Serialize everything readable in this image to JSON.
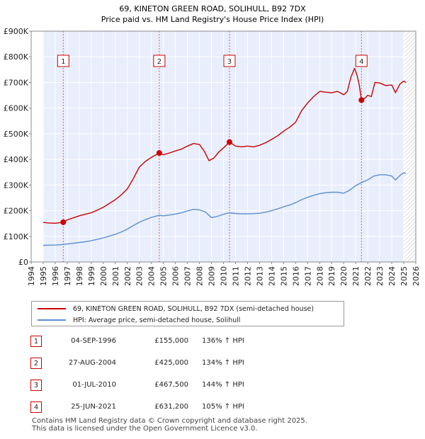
{
  "chart_data": {
    "type": "line",
    "title": "69, KINETON GREEN ROAD, SOLIHULL, B92 7DX",
    "subtitle": "Price paid vs. HM Land Registry's House Price Index (HPI)",
    "x_ticks": [
      "1994",
      "1995",
      "1996",
      "1997",
      "1998",
      "1999",
      "2000",
      "2001",
      "2002",
      "2003",
      "2004",
      "2005",
      "2006",
      "2007",
      "2008",
      "2009",
      "2010",
      "2011",
      "2012",
      "2013",
      "2014",
      "2015",
      "2016",
      "2017",
      "2018",
      "2019",
      "2020",
      "2021",
      "2022",
      "2023",
      "2024",
      "2025",
      "2026"
    ],
    "xlim": [
      1994,
      2026
    ],
    "y_ticks": [
      {
        "value": 0,
        "label": "£0"
      },
      {
        "value": 100000,
        "label": "£100K"
      },
      {
        "value": 200000,
        "label": "£200K"
      },
      {
        "value": 300000,
        "label": "£300K"
      },
      {
        "value": 400000,
        "label": "£400K"
      },
      {
        "value": 500000,
        "label": "£500K"
      },
      {
        "value": 600000,
        "label": "£600K"
      },
      {
        "value": 700000,
        "label": "£700K"
      },
      {
        "value": 800000,
        "label": "£800K"
      },
      {
        "value": 900000,
        "label": "£900K"
      }
    ],
    "ylim": [
      0,
      900000
    ],
    "data_start": 1995,
    "forecast_start": 2025.0,
    "series": [
      {
        "name": "69, KINETON GREEN ROAD, SOLIHULL, B92 7DX (semi-detached house)",
        "color": "#cc0000",
        "points": [
          [
            1995.0,
            154000
          ],
          [
            1995.5,
            152000
          ],
          [
            1996.0,
            151000
          ],
          [
            1996.67,
            155000
          ],
          [
            1997.0,
            164000
          ],
          [
            1997.5,
            172000
          ],
          [
            1998.0,
            180000
          ],
          [
            1998.5,
            186000
          ],
          [
            1999.0,
            192000
          ],
          [
            1999.5,
            202000
          ],
          [
            2000.0,
            213000
          ],
          [
            2000.5,
            228000
          ],
          [
            2001.0,
            243000
          ],
          [
            2001.5,
            262000
          ],
          [
            2002.0,
            285000
          ],
          [
            2002.5,
            325000
          ],
          [
            2003.0,
            370000
          ],
          [
            2003.5,
            392000
          ],
          [
            2004.0,
            408000
          ],
          [
            2004.66,
            425000
          ],
          [
            2005.0,
            418000
          ],
          [
            2005.5,
            425000
          ],
          [
            2006.0,
            433000
          ],
          [
            2006.5,
            440000
          ],
          [
            2007.0,
            452000
          ],
          [
            2007.5,
            462000
          ],
          [
            2008.0,
            458000
          ],
          [
            2008.4,
            432000
          ],
          [
            2008.8,
            395000
          ],
          [
            2009.2,
            405000
          ],
          [
            2009.6,
            428000
          ],
          [
            2010.0,
            445000
          ],
          [
            2010.5,
            467500
          ],
          [
            2011.0,
            452000
          ],
          [
            2011.5,
            449000
          ],
          [
            2012.0,
            452000
          ],
          [
            2012.5,
            449000
          ],
          [
            2013.0,
            455000
          ],
          [
            2013.5,
            465000
          ],
          [
            2014.0,
            478000
          ],
          [
            2014.5,
            492000
          ],
          [
            2015.0,
            510000
          ],
          [
            2015.5,
            525000
          ],
          [
            2016.0,
            545000
          ],
          [
            2016.5,
            590000
          ],
          [
            2017.0,
            620000
          ],
          [
            2017.5,
            645000
          ],
          [
            2018.0,
            665000
          ],
          [
            2018.5,
            662000
          ],
          [
            2019.0,
            660000
          ],
          [
            2019.5,
            665000
          ],
          [
            2020.0,
            652000
          ],
          [
            2020.3,
            665000
          ],
          [
            2020.6,
            720000
          ],
          [
            2020.9,
            755000
          ],
          [
            2021.1,
            730000
          ],
          [
            2021.3,
            690000
          ],
          [
            2021.48,
            631200
          ],
          [
            2021.8,
            640000
          ],
          [
            2022.0,
            650000
          ],
          [
            2022.3,
            645000
          ],
          [
            2022.6,
            700000
          ],
          [
            2023.0,
            698000
          ],
          [
            2023.5,
            688000
          ],
          [
            2024.0,
            690000
          ],
          [
            2024.3,
            660000
          ],
          [
            2024.7,
            695000
          ],
          [
            2025.0,
            705000
          ],
          [
            2025.2,
            700000
          ]
        ]
      },
      {
        "name": "HPI: Average price, semi-detached house, Solihull",
        "color": "#5b8fd1",
        "points": [
          [
            1995.0,
            65000
          ],
          [
            1995.5,
            65500
          ],
          [
            1996.0,
            66000
          ],
          [
            1996.5,
            67500
          ],
          [
            1997.0,
            70000
          ],
          [
            1997.5,
            73000
          ],
          [
            1998.0,
            76000
          ],
          [
            1998.5,
            79000
          ],
          [
            1999.0,
            83000
          ],
          [
            1999.5,
            88000
          ],
          [
            2000.0,
            94000
          ],
          [
            2000.5,
            101000
          ],
          [
            2001.0,
            108000
          ],
          [
            2001.5,
            117000
          ],
          [
            2002.0,
            128000
          ],
          [
            2002.5,
            142000
          ],
          [
            2003.0,
            155000
          ],
          [
            2003.5,
            165000
          ],
          [
            2004.0,
            174000
          ],
          [
            2004.66,
            182000
          ],
          [
            2005.0,
            180000
          ],
          [
            2005.5,
            183000
          ],
          [
            2006.0,
            187000
          ],
          [
            2006.5,
            192000
          ],
          [
            2007.0,
            199000
          ],
          [
            2007.5,
            205000
          ],
          [
            2008.0,
            203000
          ],
          [
            2008.5,
            195000
          ],
          [
            2009.0,
            173000
          ],
          [
            2009.5,
            178000
          ],
          [
            2010.0,
            186000
          ],
          [
            2010.5,
            192000
          ],
          [
            2011.0,
            189000
          ],
          [
            2011.5,
            188000
          ],
          [
            2012.0,
            188000
          ],
          [
            2012.5,
            188500
          ],
          [
            2013.0,
            190000
          ],
          [
            2013.5,
            194000
          ],
          [
            2014.0,
            200000
          ],
          [
            2014.5,
            207000
          ],
          [
            2015.0,
            215000
          ],
          [
            2015.5,
            222000
          ],
          [
            2016.0,
            231000
          ],
          [
            2016.5,
            243000
          ],
          [
            2017.0,
            252000
          ],
          [
            2017.5,
            260000
          ],
          [
            2018.0,
            266000
          ],
          [
            2018.5,
            270000
          ],
          [
            2019.0,
            272000
          ],
          [
            2019.5,
            272000
          ],
          [
            2020.0,
            268000
          ],
          [
            2020.5,
            280000
          ],
          [
            2021.0,
            298000
          ],
          [
            2021.5,
            310000
          ],
          [
            2022.0,
            320000
          ],
          [
            2022.5,
            335000
          ],
          [
            2023.0,
            340000
          ],
          [
            2023.5,
            340000
          ],
          [
            2024.0,
            335000
          ],
          [
            2024.3,
            320000
          ],
          [
            2024.7,
            338000
          ],
          [
            2025.0,
            348000
          ],
          [
            2025.2,
            345000
          ]
        ]
      }
    ],
    "sales": [
      {
        "label": "1",
        "year": 1996.67,
        "value": 155000
      },
      {
        "label": "2",
        "year": 2004.66,
        "value": 425000
      },
      {
        "label": "3",
        "year": 2010.5,
        "value": 467500
      },
      {
        "label": "4",
        "year": 2021.48,
        "value": 631200
      }
    ]
  },
  "legend": {
    "property_label": "69, KINETON GREEN ROAD, SOLIHULL, B92 7DX (semi-detached house)",
    "hpi_label": "HPI: Average price, semi-detached house, Solihull",
    "property_color": "#cc0000",
    "hpi_color": "#5b8fd1"
  },
  "table": {
    "rows": [
      {
        "num": "1",
        "date": "04-SEP-1996",
        "price": "£155,000",
        "hpi": "136% ↑ HPI"
      },
      {
        "num": "2",
        "date": "27-AUG-2004",
        "price": "£425,000",
        "hpi": "134% ↑ HPI"
      },
      {
        "num": "3",
        "date": "01-JUL-2010",
        "price": "£467,500",
        "hpi": "144% ↑ HPI"
      },
      {
        "num": "4",
        "date": "25-JUN-2021",
        "price": "£631,200",
        "hpi": "105% ↑ HPI"
      }
    ]
  },
  "footer": {
    "line1": "Contains HM Land Registry data © Crown copyright and database right 2025.",
    "line2": "This data is licensed under the Open Government Licence v3.0."
  }
}
